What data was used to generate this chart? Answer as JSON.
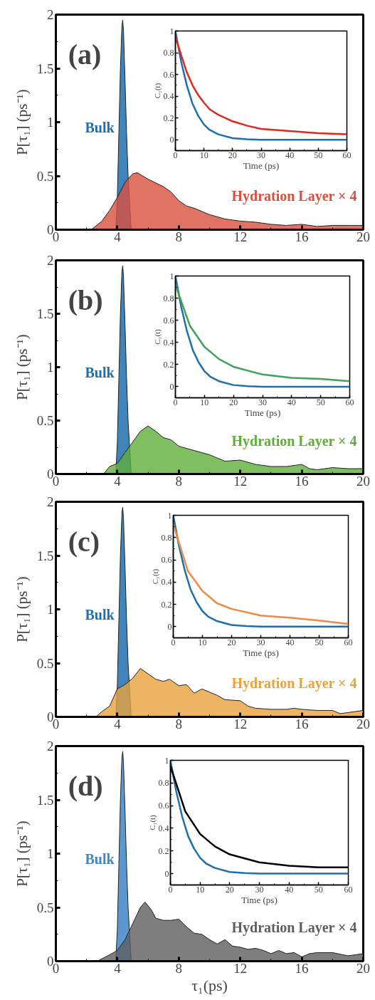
{
  "chart_data": [
    {
      "type": "area",
      "annotations": [
        "(a)"
      ],
      "ylabel": "P[τ₁] (ps⁻¹)",
      "xlim": [
        0,
        20
      ],
      "xticks": [
        0,
        4,
        8,
        12,
        16,
        20
      ],
      "ylim": [
        0,
        2
      ],
      "yticks": [
        0,
        0.5,
        1,
        1.5,
        2
      ],
      "series": [
        {
          "name": "Bulk",
          "color": "#1f6fad",
          "x": [
            3.9,
            4.0,
            4.1,
            4.2,
            4.3,
            4.35,
            4.4,
            4.5,
            4.6,
            4.7,
            4.8,
            4.9
          ],
          "values": [
            0,
            0.3,
            0.9,
            1.5,
            1.9,
            1.95,
            1.85,
            1.4,
            0.9,
            0.5,
            0.25,
            0
          ]
        },
        {
          "name": "Hydration Layer × 4",
          "color": "#d9503f",
          "x": [
            2.3,
            3,
            3.5,
            4,
            4.5,
            5,
            5.3,
            6,
            7,
            7.5,
            8,
            8.5,
            9,
            10,
            11,
            12,
            13,
            14,
            15,
            16,
            17,
            18,
            19,
            20
          ],
          "values": [
            0,
            0.08,
            0.18,
            0.3,
            0.44,
            0.52,
            0.53,
            0.47,
            0.4,
            0.35,
            0.27,
            0.22,
            0.2,
            0.14,
            0.1,
            0.08,
            0.07,
            0.05,
            0.04,
            0.05,
            0.03,
            0.04,
            0.04,
            0.04
          ]
        }
      ]
    },
    {
      "type": "line",
      "xlabel": "Time (ps)",
      "ylabel": "C₁(t)",
      "xlim": [
        0,
        60
      ],
      "xticks": [
        0,
        10,
        20,
        30,
        40,
        50,
        60
      ],
      "ylim": [
        -0.1,
        1
      ],
      "yticks": [
        0,
        0.2,
        0.4,
        0.6,
        0.8,
        1
      ],
      "series": [
        {
          "color": "#1f6fad",
          "x": [
            0,
            2,
            4,
            6,
            8,
            10,
            12,
            15,
            20,
            25,
            30,
            40,
            50,
            60
          ],
          "values": [
            1,
            0.72,
            0.5,
            0.33,
            0.22,
            0.14,
            0.09,
            0.05,
            0.015,
            0.005,
            0,
            0,
            0,
            0
          ]
        },
        {
          "color": "#e0281e",
          "x": [
            0,
            2,
            4,
            6,
            8,
            10,
            12,
            15,
            20,
            25,
            30,
            40,
            50,
            60
          ],
          "values": [
            0.95,
            0.78,
            0.62,
            0.5,
            0.41,
            0.34,
            0.28,
            0.23,
            0.17,
            0.13,
            0.1,
            0.08,
            0.06,
            0.05
          ]
        }
      ]
    },
    {
      "type": "area",
      "annotations": [
        "(b)"
      ],
      "ylabel": "P[τ₁] (ps⁻¹)",
      "xlim": [
        0,
        20
      ],
      "xticks": [
        0,
        4,
        8,
        12,
        16,
        20
      ],
      "ylim": [
        0,
        2
      ],
      "yticks": [
        0,
        0.5,
        1,
        1.5,
        2
      ],
      "series": [
        {
          "name": "Bulk",
          "color": "#1f6fad",
          "x": [
            3.9,
            4.0,
            4.1,
            4.2,
            4.3,
            4.35,
            4.4,
            4.5,
            4.6,
            4.7,
            4.8,
            4.9
          ],
          "values": [
            0,
            0.3,
            0.9,
            1.5,
            1.9,
            1.95,
            1.85,
            1.4,
            0.9,
            0.5,
            0.25,
            0
          ]
        },
        {
          "name": "Hydration Layer × 4",
          "color": "#5fae3a",
          "x": [
            3.1,
            3.5,
            4,
            4.5,
            5,
            5.5,
            6,
            6.5,
            7,
            7.5,
            8,
            9,
            10,
            11,
            12,
            13,
            14,
            15,
            16,
            16.5,
            17,
            18,
            19,
            20
          ],
          "values": [
            0,
            0.07,
            0.1,
            0.2,
            0.3,
            0.4,
            0.45,
            0.4,
            0.34,
            0.32,
            0.26,
            0.22,
            0.18,
            0.12,
            0.13,
            0.09,
            0.07,
            0.07,
            0.09,
            0.05,
            0.04,
            0.06,
            0.05,
            0.05
          ]
        }
      ]
    },
    {
      "type": "line",
      "xlabel": "Time (ps)",
      "ylabel": "C₁(t)",
      "xlim": [
        0,
        60
      ],
      "xticks": [
        0,
        10,
        20,
        30,
        40,
        50,
        60
      ],
      "ylim": [
        -0.1,
        1
      ],
      "yticks": [
        0,
        0.2,
        0.4,
        0.6,
        0.8,
        1
      ],
      "series": [
        {
          "color": "#1f6fad",
          "x": [
            0,
            2,
            4,
            6,
            8,
            10,
            12,
            15,
            20,
            25,
            30,
            40,
            50,
            60
          ],
          "values": [
            1,
            0.72,
            0.5,
            0.33,
            0.22,
            0.14,
            0.09,
            0.05,
            0.015,
            0.005,
            0,
            0,
            0,
            0
          ]
        },
        {
          "color": "#3fa25a",
          "x": [
            0,
            5,
            10,
            15,
            20,
            30,
            40,
            50,
            60
          ],
          "values": [
            0.92,
            0.55,
            0.36,
            0.25,
            0.18,
            0.11,
            0.08,
            0.07,
            0.05
          ]
        }
      ]
    },
    {
      "type": "area",
      "annotations": [
        "(c)"
      ],
      "ylabel": "P[τ₁] (ps⁻¹)",
      "xlim": [
        0,
        20
      ],
      "xticks": [
        0,
        4,
        8,
        12,
        16,
        20
      ],
      "ylim": [
        0,
        2
      ],
      "yticks": [
        0,
        0.5,
        1,
        1.5,
        2
      ],
      "series": [
        {
          "name": "Bulk",
          "color": "#1f6fad",
          "x": [
            3.9,
            4.0,
            4.1,
            4.2,
            4.3,
            4.35,
            4.4,
            4.5,
            4.6,
            4.7,
            4.8,
            4.9
          ],
          "values": [
            0,
            0.3,
            0.9,
            1.5,
            1.9,
            1.95,
            1.85,
            1.4,
            0.9,
            0.5,
            0.25,
            0
          ]
        },
        {
          "name": "Hydration Layer × 4",
          "color": "#e9a23c",
          "x": [
            2.6,
            3,
            3.5,
            4,
            4.5,
            5,
            5.5,
            6,
            6.5,
            7,
            7.4,
            8,
            8.5,
            9,
            9.5,
            10,
            10.5,
            11,
            12,
            12.5,
            13,
            14,
            15,
            15.5,
            16,
            17,
            18,
            18.5,
            19,
            20
          ],
          "values": [
            0,
            0.05,
            0.1,
            0.26,
            0.3,
            0.36,
            0.45,
            0.4,
            0.35,
            0.33,
            0.35,
            0.29,
            0.3,
            0.22,
            0.26,
            0.23,
            0.2,
            0.16,
            0.15,
            0.1,
            0.08,
            0.07,
            0.07,
            0.08,
            0.07,
            0.06,
            0.06,
            0.03,
            0.04,
            0.06
          ]
        }
      ]
    },
    {
      "type": "line",
      "xlabel": "Time (ps)",
      "ylabel": "C₁(t)",
      "xlim": [
        0,
        60
      ],
      "xticks": [
        0,
        10,
        20,
        30,
        40,
        50,
        60
      ],
      "ylim": [
        -0.1,
        1
      ],
      "yticks": [
        0,
        0.2,
        0.4,
        0.6,
        0.8,
        1
      ],
      "series": [
        {
          "color": "#1f6fad",
          "x": [
            0,
            2,
            4,
            6,
            8,
            10,
            12,
            15,
            20,
            25,
            30,
            40,
            50,
            60
          ],
          "values": [
            1,
            0.72,
            0.5,
            0.33,
            0.22,
            0.14,
            0.09,
            0.05,
            0.015,
            0.005,
            0,
            0,
            0,
            0
          ]
        },
        {
          "color": "#ee8a45",
          "x": [
            0,
            5,
            10,
            15,
            20,
            30,
            40,
            50,
            60
          ],
          "values": [
            0.92,
            0.5,
            0.32,
            0.21,
            0.16,
            0.1,
            0.08,
            0.055,
            0.025
          ]
        }
      ]
    },
    {
      "type": "area",
      "annotations": [
        "(d)"
      ],
      "xlabel": "τ₁(ps)",
      "ylabel": "P[τ₁] (ps⁻¹)",
      "xlim": [
        0,
        20
      ],
      "xticks": [
        0,
        4,
        8,
        12,
        16,
        20
      ],
      "ylim": [
        0,
        2
      ],
      "yticks": [
        0,
        0.5,
        1,
        1.5,
        2
      ],
      "series": [
        {
          "name": "Bulk",
          "color": "#3f86c4",
          "x": [
            3.9,
            4.0,
            4.1,
            4.2,
            4.3,
            4.35,
            4.4,
            4.5,
            4.6,
            4.7,
            4.8,
            4.9
          ],
          "values": [
            0,
            0.3,
            0.9,
            1.5,
            1.9,
            1.95,
            1.85,
            1.4,
            0.9,
            0.5,
            0.25,
            0
          ]
        },
        {
          "name": "Hydration Layer × 4",
          "color": "#5e5e5e",
          "x": [
            2.7,
            3.5,
            4,
            4.5,
            5,
            5.5,
            5.8,
            6.2,
            6.5,
            7,
            7.5,
            8,
            8.5,
            9,
            9.5,
            10,
            10.5,
            11,
            11.5,
            12,
            12.5,
            13,
            13.5,
            14,
            14.5,
            15,
            15.5,
            16,
            16.5,
            17,
            18,
            19,
            20
          ],
          "values": [
            0,
            0.06,
            0.1,
            0.2,
            0.35,
            0.5,
            0.55,
            0.48,
            0.4,
            0.38,
            0.38,
            0.39,
            0.32,
            0.26,
            0.25,
            0.2,
            0.16,
            0.2,
            0.14,
            0.13,
            0.11,
            0.12,
            0.1,
            0.07,
            0.1,
            0.07,
            0.08,
            0.04,
            0.07,
            0.08,
            0.08,
            0.05,
            0.07
          ]
        }
      ]
    },
    {
      "type": "line",
      "xlabel": "Time (ps)",
      "ylabel": "C₁(t)",
      "xlim": [
        0,
        60
      ],
      "xticks": [
        0,
        10,
        20,
        30,
        40,
        50,
        60
      ],
      "ylim": [
        -0.1,
        1
      ],
      "yticks": [
        0,
        0.2,
        0.4,
        0.6,
        0.8,
        1
      ],
      "series": [
        {
          "color": "#1f6fad",
          "x": [
            0,
            2,
            4,
            6,
            8,
            10,
            12,
            15,
            20,
            25,
            30,
            40,
            50,
            60
          ],
          "values": [
            1,
            0.72,
            0.5,
            0.33,
            0.22,
            0.14,
            0.09,
            0.05,
            0.015,
            0.005,
            0,
            0,
            0,
            0
          ]
        },
        {
          "color": "#000000",
          "x": [
            0,
            5,
            10,
            15,
            20,
            30,
            40,
            50,
            60
          ],
          "values": [
            0.95,
            0.55,
            0.35,
            0.24,
            0.17,
            0.1,
            0.07,
            0.055,
            0.055
          ]
        }
      ]
    }
  ]
}
